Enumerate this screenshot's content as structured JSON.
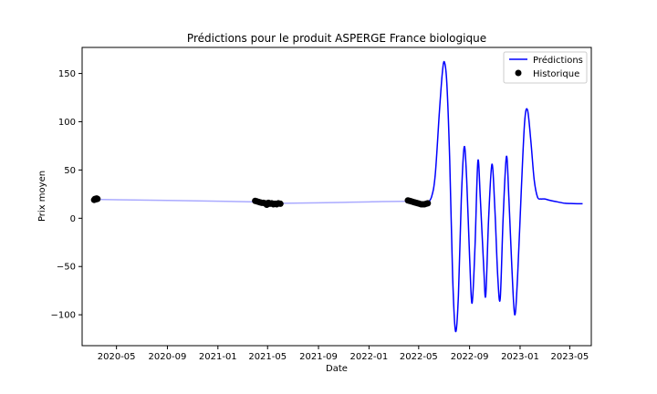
{
  "chart_data": {
    "type": "line",
    "title": "Prédictions pour le produit ASPERGE France biologique",
    "xlabel": "Date",
    "ylabel": "Prix moyen",
    "xlim": [
      "2020-02-08",
      "2023-06-22"
    ],
    "ylim": [
      -132,
      177
    ],
    "x_ticks": [
      "2020-05",
      "2020-09",
      "2021-01",
      "2021-05",
      "2021-09",
      "2022-01",
      "2022-05",
      "2022-09",
      "2023-01",
      "2023-05"
    ],
    "y_ticks": [
      -100,
      -50,
      0,
      50,
      100,
      150
    ],
    "legend": {
      "placement": "top-right",
      "entries": [
        "Prédictions",
        "Historique"
      ]
    },
    "colors": {
      "predictions": "#0000ff",
      "history": "#000000",
      "gap_line": "#aaaaff"
    },
    "series": [
      {
        "name": "Prédictions",
        "kind": "line",
        "points": [
          [
            "2020-03-10",
            19.5
          ],
          [
            "2021-04-01",
            17.0
          ],
          [
            "2021-05-15",
            15.0
          ],
          [
            "2021-06-10",
            15.5
          ],
          [
            "2021-09-01",
            16.0
          ],
          [
            "2022-01-01",
            17.0
          ],
          [
            "2022-04-05",
            17.5
          ],
          [
            "2022-05-20",
            15.0
          ],
          [
            "2022-06-01",
            22.0
          ],
          [
            "2022-06-10",
            45.0
          ],
          [
            "2022-06-20",
            110.0
          ],
          [
            "2022-06-27",
            150.0
          ],
          [
            "2022-07-02",
            162.0
          ],
          [
            "2022-07-08",
            140.0
          ],
          [
            "2022-07-15",
            60.0
          ],
          [
            "2022-07-22",
            -60.0
          ],
          [
            "2022-07-29",
            -117.0
          ],
          [
            "2022-08-05",
            -80.0
          ],
          [
            "2022-08-12",
            20.0
          ],
          [
            "2022-08-19",
            74.0
          ],
          [
            "2022-08-25",
            40.0
          ],
          [
            "2022-09-01",
            -40.0
          ],
          [
            "2022-09-07",
            -88.0
          ],
          [
            "2022-09-14",
            -30.0
          ],
          [
            "2022-09-21",
            59.0
          ],
          [
            "2022-09-27",
            20.0
          ],
          [
            "2022-10-05",
            -50.0
          ],
          [
            "2022-10-10",
            -80.0
          ],
          [
            "2022-10-17",
            0.0
          ],
          [
            "2022-10-25",
            56.0
          ],
          [
            "2022-11-01",
            10.0
          ],
          [
            "2022-11-08",
            -60.0
          ],
          [
            "2022-11-14",
            -83.0
          ],
          [
            "2022-11-21",
            0.0
          ],
          [
            "2022-11-29",
            64.0
          ],
          [
            "2022-12-05",
            20.0
          ],
          [
            "2022-12-12",
            -50.0
          ],
          [
            "2022-12-19",
            -100.0
          ],
          [
            "2022-12-26",
            -60.0
          ],
          [
            "2023-01-04",
            30.0
          ],
          [
            "2023-01-12",
            100.0
          ],
          [
            "2023-01-19",
            112.0
          ],
          [
            "2023-01-27",
            80.0
          ],
          [
            "2023-02-04",
            40.0
          ],
          [
            "2023-02-12",
            22.0
          ],
          [
            "2023-02-20",
            20.0
          ],
          [
            "2023-03-01",
            20.0
          ],
          [
            "2023-03-15",
            18.5
          ],
          [
            "2023-04-01",
            17.0
          ],
          [
            "2023-04-20",
            15.5
          ],
          [
            "2023-05-10",
            15.2
          ],
          [
            "2023-06-01",
            15.0
          ]
        ]
      },
      {
        "name": "Historique",
        "kind": "scatter",
        "points": [
          [
            "2020-03-08",
            19.0
          ],
          [
            "2020-03-10",
            20.0
          ],
          [
            "2020-03-12",
            19.5
          ],
          [
            "2020-03-14",
            20.5
          ],
          [
            "2020-03-16",
            20.0
          ],
          [
            "2021-04-01",
            18.0
          ],
          [
            "2021-04-05",
            17.5
          ],
          [
            "2021-04-09",
            17.0
          ],
          [
            "2021-04-13",
            16.5
          ],
          [
            "2021-04-17",
            16.0
          ],
          [
            "2021-04-21",
            16.0
          ],
          [
            "2021-04-25",
            15.5
          ],
          [
            "2021-04-29",
            14.0
          ],
          [
            "2021-05-03",
            16.0
          ],
          [
            "2021-05-07",
            15.0
          ],
          [
            "2021-05-11",
            15.5
          ],
          [
            "2021-05-15",
            14.5
          ],
          [
            "2021-05-19",
            15.0
          ],
          [
            "2021-05-23",
            14.5
          ],
          [
            "2021-05-27",
            15.5
          ],
          [
            "2021-06-01",
            15.0
          ],
          [
            "2022-04-05",
            18.5
          ],
          [
            "2022-04-09",
            18.0
          ],
          [
            "2022-04-13",
            17.5
          ],
          [
            "2022-04-17",
            17.0
          ],
          [
            "2022-04-21",
            16.5
          ],
          [
            "2022-04-25",
            16.0
          ],
          [
            "2022-04-29",
            15.5
          ],
          [
            "2022-05-03",
            15.0
          ],
          [
            "2022-05-07",
            14.5
          ],
          [
            "2022-05-11",
            14.5
          ],
          [
            "2022-05-15",
            14.5
          ],
          [
            "2022-05-19",
            15.0
          ],
          [
            "2022-05-23",
            15.5
          ]
        ]
      }
    ]
  }
}
